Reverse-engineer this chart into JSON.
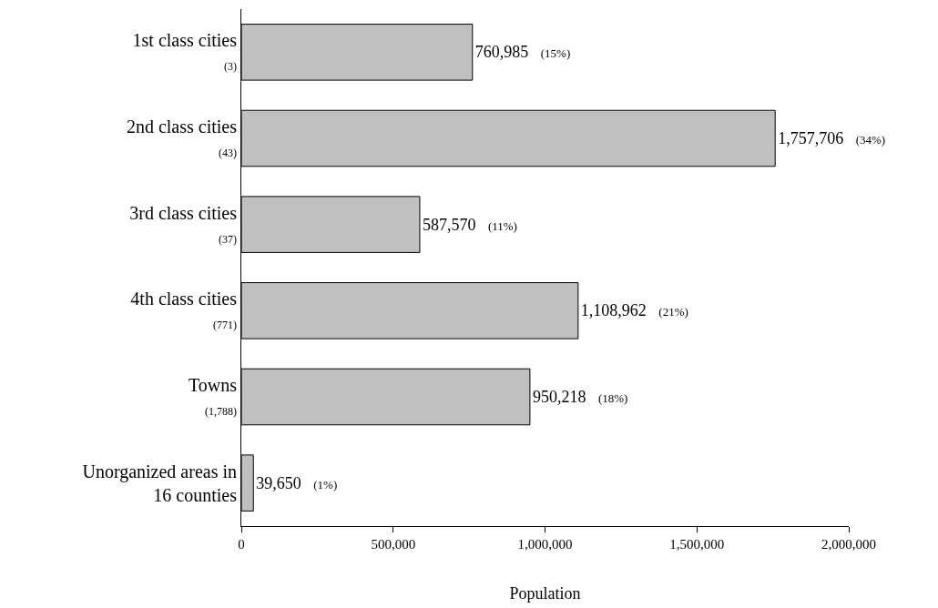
{
  "chart_data": {
    "type": "bar",
    "orientation": "horizontal",
    "xlabel": "Population",
    "categories": [
      "1st class cities\n(3)",
      "2nd class cities\n(43)",
      "3rd class cities\n(37)",
      "4th class cities\n(771)",
      "Towns\n(1,788)",
      "Unorganized areas in\n16 counties"
    ],
    "values": [
      760985,
      1757706,
      587570,
      1108962,
      950218,
      39650
    ],
    "value_labels": [
      "760,985 (15%)",
      "1,757,706 (34%)",
      "587,570 (11%)",
      "1,108,962 (21%)",
      "950,218 (18%)",
      "39,650 (1%)"
    ],
    "color": "#c0c0c0",
    "xlim": [
      0,
      2000000
    ],
    "xticks": [
      {
        "value": 0,
        "label": "0"
      },
      {
        "value": 500000,
        "label": "500,000"
      },
      {
        "value": 1000000,
        "label": "1,000,000"
      },
      {
        "value": 1500000,
        "label": "1,500,000"
      },
      {
        "value": 2000000,
        "label": "2,000,000"
      }
    ]
  }
}
